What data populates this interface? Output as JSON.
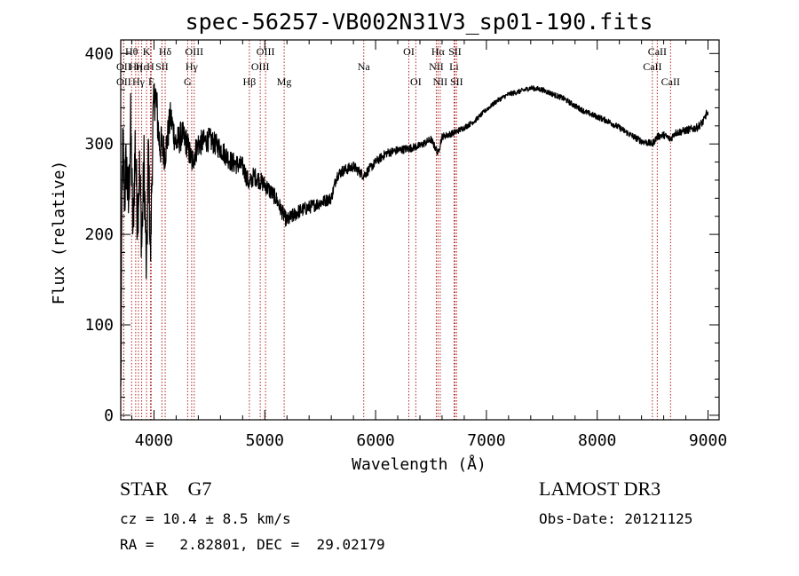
{
  "chart_data": {
    "type": "line",
    "title": "spec-56257-VB002N31V3_sp01-190.fits",
    "xlabel": "Wavelength (Å)",
    "ylabel": "Flux (relative)",
    "xlim": [
      3700,
      9100
    ],
    "ylim": [
      -5,
      415
    ],
    "xticks": [
      4000,
      5000,
      6000,
      7000,
      8000,
      9000
    ],
    "yticks": [
      0,
      100,
      200,
      300,
      400
    ],
    "x_major": 1000,
    "x_minor": 200,
    "y_major": 100,
    "y_minor": 20,
    "line_color": "#000000",
    "marker_color": "#b22222",
    "spectrum_anchors": [
      [
        3700,
        20
      ],
      [
        3706,
        120
      ],
      [
        3712,
        260
      ],
      [
        3720,
        300
      ],
      [
        3735,
        240
      ],
      [
        3750,
        280
      ],
      [
        3770,
        230
      ],
      [
        3790,
        320
      ],
      [
        3810,
        200
      ],
      [
        3830,
        300
      ],
      [
        3850,
        220
      ],
      [
        3870,
        270
      ],
      [
        3890,
        190
      ],
      [
        3910,
        280
      ],
      [
        3933,
        150
      ],
      [
        3950,
        300
      ],
      [
        3968,
        170
      ],
      [
        3990,
        320
      ],
      [
        4010,
        360
      ],
      [
        4050,
        300
      ],
      [
        4101,
        290
      ],
      [
        4150,
        330
      ],
      [
        4200,
        300
      ],
      [
        4250,
        310
      ],
      [
        4300,
        300
      ],
      [
        4340,
        280
      ],
      [
        4400,
        300
      ],
      [
        4500,
        305
      ],
      [
        4600,
        295
      ],
      [
        4700,
        280
      ],
      [
        4800,
        275
      ],
      [
        4861,
        255
      ],
      [
        4900,
        265
      ],
      [
        5000,
        255
      ],
      [
        5100,
        240
      ],
      [
        5175,
        220
      ],
      [
        5200,
        215
      ],
      [
        5300,
        225
      ],
      [
        5400,
        230
      ],
      [
        5500,
        235
      ],
      [
        5600,
        240
      ],
      [
        5650,
        265
      ],
      [
        5700,
        270
      ],
      [
        5800,
        275
      ],
      [
        5893,
        265
      ],
      [
        6000,
        280
      ],
      [
        6100,
        290
      ],
      [
        6200,
        293
      ],
      [
        6300,
        295
      ],
      [
        6400,
        298
      ],
      [
        6500,
        305
      ],
      [
        6563,
        290
      ],
      [
        6600,
        308
      ],
      [
        6700,
        312
      ],
      [
        6800,
        318
      ],
      [
        6900,
        326
      ],
      [
        7000,
        338
      ],
      [
        7100,
        348
      ],
      [
        7200,
        355
      ],
      [
        7300,
        358
      ],
      [
        7400,
        362
      ],
      [
        7500,
        360
      ],
      [
        7600,
        355
      ],
      [
        7700,
        350
      ],
      [
        7800,
        342
      ],
      [
        7900,
        335
      ],
      [
        8000,
        330
      ],
      [
        8100,
        325
      ],
      [
        8200,
        318
      ],
      [
        8300,
        310
      ],
      [
        8400,
        303
      ],
      [
        8498,
        300
      ],
      [
        8542,
        308
      ],
      [
        8600,
        310
      ],
      [
        8662,
        305
      ],
      [
        8700,
        312
      ],
      [
        8800,
        315
      ],
      [
        8900,
        318
      ],
      [
        8960,
        325
      ],
      [
        8990,
        335
      ],
      [
        9000,
        330
      ]
    ],
    "spectrum_noise": [
      [
        3700,
        60
      ],
      [
        3950,
        55
      ],
      [
        4100,
        30
      ],
      [
        4500,
        20
      ],
      [
        5000,
        15
      ],
      [
        5600,
        10
      ],
      [
        6000,
        8
      ],
      [
        6600,
        6
      ],
      [
        7000,
        4
      ],
      [
        8000,
        5
      ],
      [
        9000,
        7
      ]
    ],
    "line_markers": [
      {
        "label": "Hθ",
        "wavelength": 3798,
        "row": 1
      },
      {
        "label": "OII",
        "wavelength": 3727,
        "row": 2
      },
      {
        "label": "OII",
        "wavelength": 3727,
        "row": 3
      },
      {
        "label": "Hη",
        "wavelength": 3835,
        "row": 2
      },
      {
        "label": "Hε",
        "wavelength": 3889,
        "row": 2
      },
      {
        "label": "Hγ",
        "wavelength": 3860,
        "row": 3
      },
      {
        "label": "K",
        "wavelength": 3933,
        "row": 1
      },
      {
        "label": "H",
        "wavelength": 3968,
        "row": 2
      },
      {
        "label": "F",
        "wavelength": 3975,
        "row": 3
      },
      {
        "label": "Hδ",
        "wavelength": 4101,
        "row": 1
      },
      {
        "label": "SII",
        "wavelength": 4072,
        "row": 2
      },
      {
        "label": "OIII",
        "wavelength": 4363,
        "row": 1
      },
      {
        "label": "Hγ",
        "wavelength": 4340,
        "row": 2
      },
      {
        "label": "G",
        "wavelength": 4304,
        "row": 3
      },
      {
        "label": "Hβ",
        "wavelength": 4861,
        "row": 3
      },
      {
        "label": "OIII",
        "wavelength": 5007,
        "row": 1
      },
      {
        "label": "OIII",
        "wavelength": 4959,
        "row": 2
      },
      {
        "label": "Mg",
        "wavelength": 5175,
        "row": 3
      },
      {
        "label": "Na",
        "wavelength": 5893,
        "row": 2
      },
      {
        "label": "OI",
        "wavelength": 6300,
        "row": 1
      },
      {
        "label": "OI",
        "wavelength": 6363,
        "row": 3
      },
      {
        "label": "Hα",
        "wavelength": 6563,
        "row": 1
      },
      {
        "label": "NII",
        "wavelength": 6548,
        "row": 2
      },
      {
        "label": "NII",
        "wavelength": 6583,
        "row": 3
      },
      {
        "label": "SII",
        "wavelength": 6716,
        "row": 1
      },
      {
        "label": "Li",
        "wavelength": 6708,
        "row": 2
      },
      {
        "label": "SII",
        "wavelength": 6731,
        "row": 3
      },
      {
        "label": "CaII",
        "wavelength": 8542,
        "row": 1
      },
      {
        "label": "CaII",
        "wavelength": 8498,
        "row": 2
      },
      {
        "label": "CaII",
        "wavelength": 8662,
        "row": 3
      }
    ]
  },
  "info": {
    "object_type": "STAR",
    "subclass": "G7",
    "cz": "cz = 10.4 ± 8.5 km/s",
    "ra_dec": "RA =   2.82801, DEC =  29.02179",
    "survey": "LAMOST DR3",
    "obs_date": "Obs-Date: 20121125"
  }
}
